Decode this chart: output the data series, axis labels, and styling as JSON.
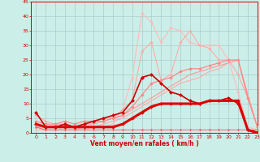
{
  "title": "",
  "xlabel": "Vent moyen/en rafales ( km/h )",
  "ylabel": "",
  "background_color": "#cceee8",
  "grid_color": "#aacccc",
  "xlim": [
    -0.5,
    23
  ],
  "ylim": [
    0,
    45
  ],
  "yticks": [
    0,
    5,
    10,
    15,
    20,
    25,
    30,
    35,
    40,
    45
  ],
  "xticks": [
    0,
    1,
    2,
    3,
    4,
    5,
    6,
    7,
    8,
    9,
    10,
    11,
    12,
    13,
    14,
    15,
    16,
    17,
    18,
    19,
    20,
    21,
    22,
    23
  ],
  "lines": [
    {
      "x": [
        0,
        1,
        2,
        3,
        4,
        5,
        6,
        7,
        8,
        9,
        10,
        11,
        12,
        13,
        14,
        15,
        16,
        17,
        18,
        19,
        20,
        21,
        22,
        23
      ],
      "y": [
        2,
        1,
        1,
        1,
        1,
        1,
        2,
        2,
        3,
        8,
        19,
        41,
        38,
        31,
        36,
        35,
        31,
        30,
        30,
        30,
        25,
        14,
        2,
        1
      ],
      "color": "#ffbbbb",
      "lw": 0.8,
      "marker": "D",
      "ms": 1.8,
      "zorder": 2
    },
    {
      "x": [
        0,
        1,
        2,
        3,
        4,
        5,
        6,
        7,
        8,
        9,
        10,
        11,
        12,
        13,
        14,
        15,
        16,
        17,
        18,
        19,
        20,
        21,
        22,
        23
      ],
      "y": [
        6,
        4,
        3,
        3,
        2,
        3,
        4,
        5,
        5,
        8,
        11,
        28,
        31,
        18,
        20,
        31,
        35,
        30,
        29,
        25,
        25,
        20,
        12,
        2
      ],
      "color": "#ffaaaa",
      "lw": 0.8,
      "marker": "D",
      "ms": 1.8,
      "zorder": 3
    },
    {
      "x": [
        0,
        1,
        2,
        3,
        4,
        5,
        6,
        7,
        8,
        9,
        10,
        11,
        12,
        13,
        14,
        15,
        16,
        17,
        18,
        19,
        20,
        21,
        22,
        23
      ],
      "y": [
        1,
        1,
        1,
        1,
        1,
        2,
        2,
        3,
        4,
        5,
        7,
        9,
        11,
        13,
        15,
        17,
        18,
        19,
        21,
        22,
        24,
        25,
        13,
        2
      ],
      "color": "#ffaaaa",
      "lw": 0.8,
      "marker": null,
      "ms": 0,
      "zorder": 2
    },
    {
      "x": [
        0,
        1,
        2,
        3,
        4,
        5,
        6,
        7,
        8,
        9,
        10,
        11,
        12,
        13,
        14,
        15,
        16,
        17,
        18,
        19,
        20,
        21,
        22,
        23
      ],
      "y": [
        2,
        2,
        2,
        2,
        2,
        3,
        3,
        4,
        5,
        6,
        8,
        10,
        12,
        14,
        16,
        18,
        20,
        21,
        22,
        23,
        24,
        25,
        13,
        2
      ],
      "color": "#ff9999",
      "lw": 0.8,
      "marker": null,
      "ms": 0,
      "zorder": 2
    },
    {
      "x": [
        0,
        1,
        2,
        3,
        4,
        5,
        6,
        7,
        8,
        9,
        10,
        11,
        12,
        13,
        14,
        15,
        16,
        17,
        18,
        19,
        20,
        21,
        22,
        23
      ],
      "y": [
        4,
        3,
        3,
        4,
        3,
        4,
        4,
        4,
        5,
        6,
        9,
        13,
        17,
        18,
        19,
        21,
        22,
        22,
        23,
        24,
        25,
        25,
        12,
        2
      ],
      "color": "#ff8888",
      "lw": 0.9,
      "marker": "D",
      "ms": 2.0,
      "zorder": 4
    },
    {
      "x": [
        0,
        1,
        2,
        3,
        4,
        5,
        6,
        7,
        8,
        9,
        10,
        11,
        12,
        13,
        14,
        15,
        16,
        17,
        18,
        19,
        20,
        21,
        22,
        23
      ],
      "y": [
        7,
        2,
        2,
        3,
        2,
        3,
        4,
        5,
        6,
        7,
        11,
        19,
        20,
        17,
        14,
        13,
        11,
        10,
        11,
        11,
        12,
        10,
        1,
        0
      ],
      "color": "#cc0000",
      "lw": 1.2,
      "marker": "D",
      "ms": 2.2,
      "zorder": 6
    },
    {
      "x": [
        0,
        1,
        2,
        3,
        4,
        5,
        6,
        7,
        8,
        9,
        10,
        11,
        12,
        13,
        14,
        15,
        16,
        17,
        18,
        19,
        20,
        21,
        22,
        23
      ],
      "y": [
        3,
        2,
        2,
        2,
        2,
        2,
        2,
        2,
        2,
        3,
        5,
        7,
        9,
        10,
        10,
        10,
        10,
        10,
        11,
        11,
        11,
        11,
        1,
        0
      ],
      "color": "#dd0000",
      "lw": 2.2,
      "marker": "D",
      "ms": 2.0,
      "zorder": 7
    },
    {
      "x": [
        0,
        1,
        2,
        3,
        4,
        5,
        6,
        7,
        8,
        9,
        10,
        11,
        12,
        13,
        14,
        15,
        16,
        17,
        18,
        19,
        20,
        21,
        22,
        23
      ],
      "y": [
        2,
        1,
        1,
        1,
        1,
        1,
        1,
        1,
        1,
        1,
        1,
        1,
        1,
        1,
        1,
        1,
        1,
        1,
        1,
        1,
        1,
        1,
        1,
        1
      ],
      "color": "#ee6666",
      "lw": 0.7,
      "marker": "D",
      "ms": 1.5,
      "zorder": 3
    }
  ]
}
